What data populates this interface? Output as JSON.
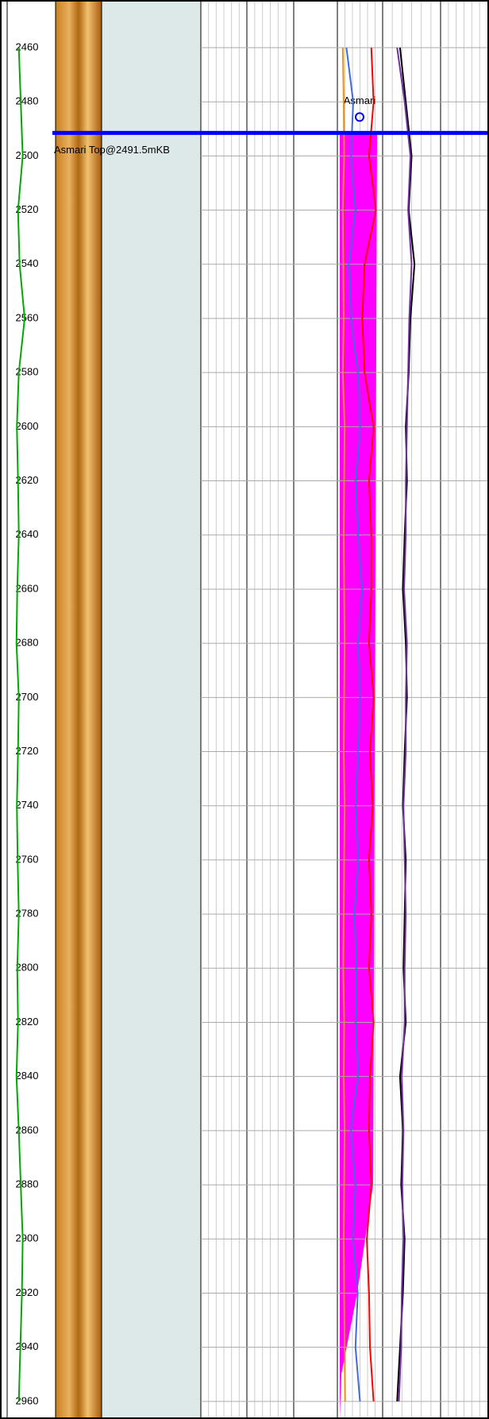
{
  "chart_data": {
    "type": "well-log",
    "ylim": [
      2442.4,
      2966.5
    ],
    "yticks": [
      2460,
      2480,
      2500,
      2520,
      2540,
      2560,
      2580,
      2600,
      2620,
      2640,
      2660,
      2680,
      2700,
      2720,
      2740,
      2760,
      2780,
      2800,
      2820,
      2840,
      2860,
      2880,
      2900,
      2920,
      2940,
      2960
    ],
    "marker": {
      "label": "Asmari Top@2491.5mKB",
      "depth": 2491.5,
      "color": "#0000ff"
    },
    "formation": {
      "label": "Asmari",
      "color": "#ff00ff"
    },
    "xlim": [
      0,
      100
    ],
    "x": [
      2460,
      2480,
      2500,
      2520,
      2540,
      2560,
      2580,
      2600,
      2620,
      2640,
      2660,
      2680,
      2700,
      2720,
      2740,
      2760,
      2780,
      2800,
      2820,
      2840,
      2860,
      2880,
      2900,
      2920,
      2940,
      2960
    ],
    "series": [
      {
        "track": 0,
        "color": "#00aa00",
        "values": [
          30,
          35,
          40,
          28,
          32,
          45,
          30,
          25,
          28,
          30,
          26,
          24,
          30,
          28,
          25,
          27,
          30,
          26,
          28,
          24,
          30,
          35,
          40,
          38,
          34,
          30
        ]
      },
      {
        "track": 6,
        "color": "#ff8c00",
        "values": [
          12,
          14,
          15,
          12,
          13,
          14,
          12,
          16,
          15,
          14,
          15,
          16,
          15,
          14,
          16,
          15,
          14,
          13,
          15,
          14,
          16,
          15,
          14,
          15,
          16,
          17
        ]
      },
      {
        "track": 6,
        "color": "#4169e1",
        "values": [
          20,
          35,
          30,
          40,
          25,
          30,
          45,
          50,
          40,
          45,
          55,
          45,
          50,
          45,
          40,
          45,
          38,
          42,
          40,
          45,
          30,
          40,
          35,
          45,
          40,
          50
        ]
      },
      {
        "track": 6,
        "color": "#ff0000",
        "values": [
          75,
          80,
          70,
          85,
          60,
          55,
          60,
          80,
          70,
          75,
          75,
          70,
          80,
          72,
          78,
          70,
          75,
          70,
          80,
          72,
          70,
          75,
          65,
          70,
          72,
          80
        ]
      },
      {
        "track": 7,
        "color": "#000000",
        "values": [
          30,
          40,
          50,
          45,
          55,
          48,
          45,
          40,
          42,
          38,
          35,
          40,
          42,
          38,
          35,
          40,
          38,
          36,
          40,
          30,
          35,
          32,
          38,
          35,
          30,
          25
        ]
      },
      {
        "track": 7,
        "color": "#7030a0",
        "values": [
          25,
          38,
          48,
          44,
          50,
          46,
          44,
          42,
          40,
          40,
          37,
          42,
          40,
          40,
          36,
          38,
          40,
          38,
          38,
          33,
          36,
          34,
          36,
          33,
          32,
          28
        ]
      }
    ]
  }
}
